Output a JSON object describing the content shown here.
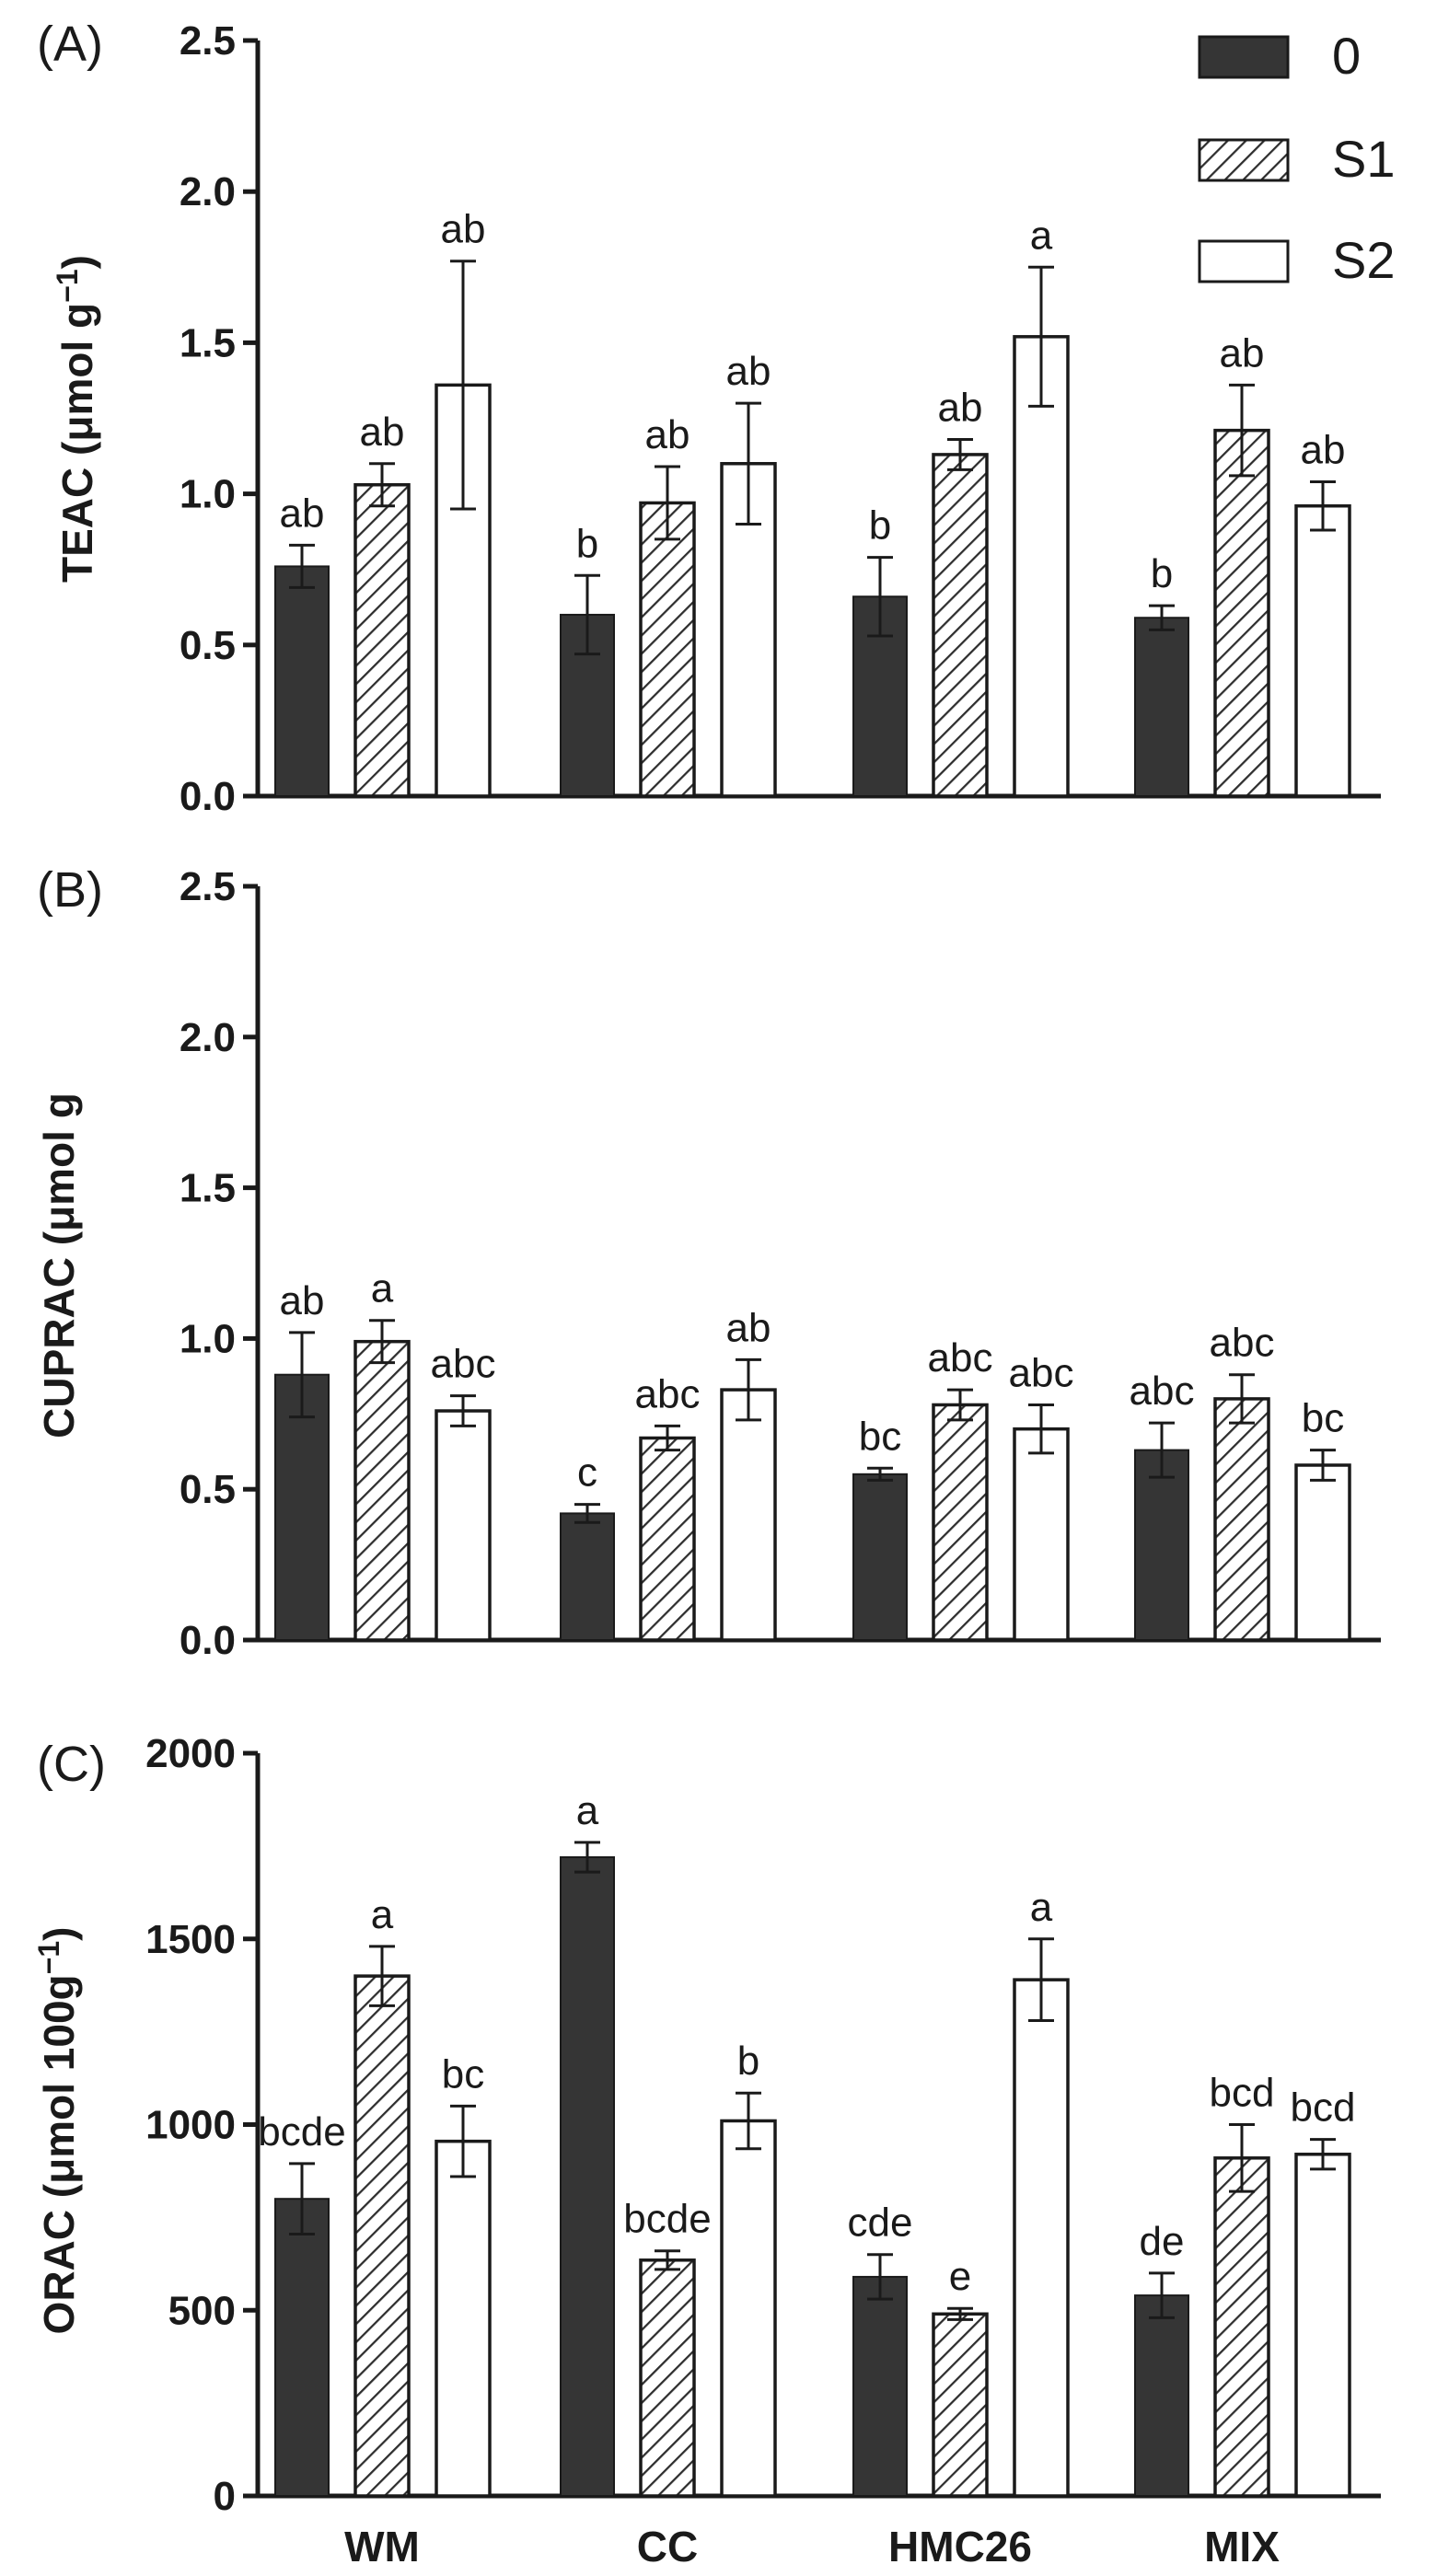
{
  "chart_data": [
    {
      "type": "bar",
      "panel_label": "(A)",
      "title": "",
      "xlabel": "",
      "ylabel": "TEAC (μmol g",
      "ylabel_sup": "−1",
      "ylabel_close": ")",
      "ylim": [
        0,
        2.5
      ],
      "yticks": [
        "0.0",
        "0.5",
        "1.0",
        "1.5",
        "2.0",
        "2.5"
      ],
      "tick_values": [
        0,
        0.5,
        1.0,
        1.5,
        2.0,
        2.5
      ],
      "categories": [
        "WM",
        "CC",
        "HMC26",
        "MIX"
      ],
      "series": [
        {
          "name": "0",
          "values": [
            0.76,
            0.6,
            0.66,
            0.59
          ],
          "errors": [
            0.07,
            0.13,
            0.13,
            0.04
          ],
          "letters": [
            "ab",
            "b",
            "b",
            "b"
          ]
        },
        {
          "name": "S1",
          "values": [
            1.03,
            0.97,
            1.13,
            1.21
          ],
          "errors": [
            0.07,
            0.12,
            0.05,
            0.15
          ],
          "letters": [
            "ab",
            "ab",
            "ab",
            "ab"
          ]
        },
        {
          "name": "S2",
          "values": [
            1.36,
            1.1,
            1.52,
            0.96
          ],
          "errors": [
            0.41,
            0.2,
            0.23,
            0.08
          ],
          "letters": [
            "ab",
            "ab",
            "a",
            "ab"
          ]
        }
      ]
    },
    {
      "type": "bar",
      "panel_label": "(B)",
      "title": "",
      "xlabel": "",
      "ylabel": "CUPRAC (μmol g",
      "ylabel_sup": "",
      "ylabel_close": "",
      "ylim": [
        0,
        2.5
      ],
      "yticks": [
        "0.0",
        "0.5",
        "1.0",
        "1.5",
        "2.0",
        "2.5"
      ],
      "tick_values": [
        0,
        0.5,
        1.0,
        1.5,
        2.0,
        2.5
      ],
      "categories": [
        "WM",
        "CC",
        "HMC26",
        "MIX"
      ],
      "series": [
        {
          "name": "0",
          "values": [
            0.88,
            0.42,
            0.55,
            0.63
          ],
          "errors": [
            0.14,
            0.03,
            0.02,
            0.09
          ],
          "letters": [
            "ab",
            "c",
            "bc",
            "abc"
          ]
        },
        {
          "name": "S1",
          "values": [
            0.99,
            0.67,
            0.78,
            0.8
          ],
          "errors": [
            0.07,
            0.04,
            0.05,
            0.08
          ],
          "letters": [
            "a",
            "abc",
            "abc",
            "abc"
          ]
        },
        {
          "name": "S2",
          "values": [
            0.76,
            0.83,
            0.7,
            0.58
          ],
          "errors": [
            0.05,
            0.1,
            0.08,
            0.05
          ],
          "letters": [
            "abc",
            "ab",
            "abc",
            "bc"
          ]
        }
      ]
    },
    {
      "type": "bar",
      "panel_label": "(C)",
      "title": "",
      "xlabel": "",
      "ylabel": "ORAC (μmol 100g",
      "ylabel_sup": "−1",
      "ylabel_close": ")",
      "ylim": [
        0,
        2000
      ],
      "yticks": [
        "0",
        "500",
        "1000",
        "1500",
        "2000"
      ],
      "tick_values": [
        0,
        500,
        1000,
        1500,
        2000
      ],
      "categories": [
        "WM",
        "CC",
        "HMC26",
        "MIX"
      ],
      "series": [
        {
          "name": "0",
          "values": [
            800,
            1720,
            590,
            540
          ],
          "errors": [
            95,
            40,
            60,
            60
          ],
          "letters": [
            "bcde",
            "a",
            "cde",
            "de"
          ]
        },
        {
          "name": "S1",
          "values": [
            1400,
            635,
            490,
            910
          ],
          "errors": [
            80,
            25,
            15,
            90
          ],
          "letters": [
            "a",
            "bcde",
            "e",
            "bcd"
          ]
        },
        {
          "name": "S2",
          "values": [
            955,
            1010,
            1390,
            920
          ],
          "errors": [
            95,
            75,
            110,
            40
          ],
          "letters": [
            "bc",
            "b",
            "a",
            "bcd"
          ]
        }
      ]
    }
  ],
  "legend": {
    "entries": [
      {
        "name": "0",
        "label": "0"
      },
      {
        "name": "S1",
        "label": "S1"
      },
      {
        "name": "S2",
        "label": "S2"
      }
    ]
  },
  "colors": {
    "solid": "#353535",
    "outline": "#1a1a1a",
    "hatch": "#333333",
    "fill_white": "#ffffff"
  }
}
